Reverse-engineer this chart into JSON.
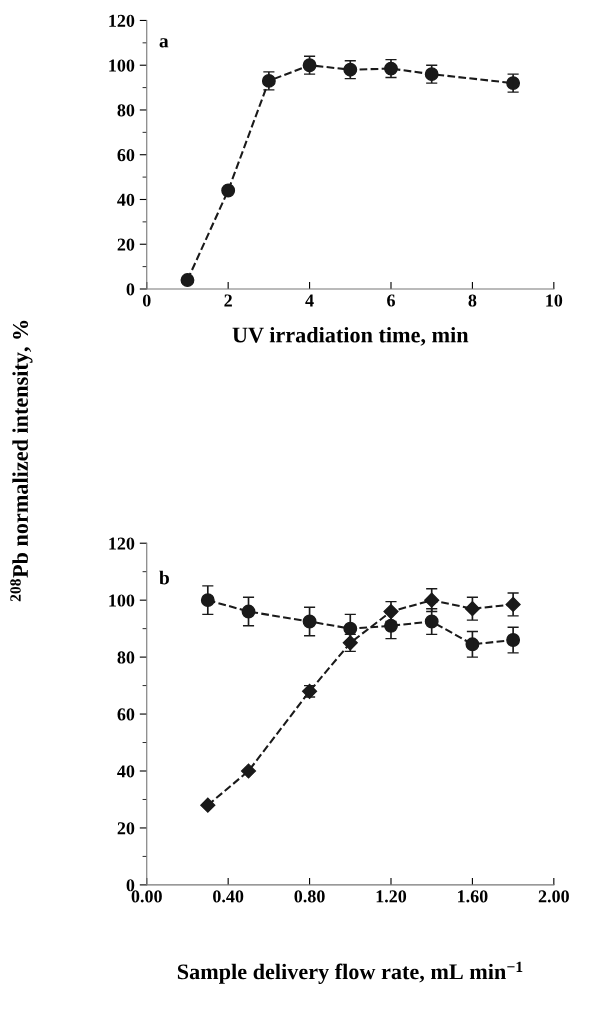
{
  "chart_data": [
    {
      "type": "line",
      "annotations": [
        "a"
      ],
      "xlabel": "UV irradiation time, min",
      "ylabel": "$^{208}$Pb normalized intensity, %",
      "x": [
        1,
        2,
        3,
        4,
        5,
        6,
        7,
        9
      ],
      "xlim": [
        0,
        10
      ],
      "xticks": [
        0,
        2,
        4,
        6,
        8,
        10
      ],
      "ylim": [
        0,
        120
      ],
      "yticks": [
        0,
        20,
        40,
        60,
        80,
        100,
        120
      ],
      "marker": "circle",
      "line_style": "dashed",
      "series": [
        {
          "color": "#1a1a1a",
          "values": [
            4,
            44,
            93,
            100,
            98,
            98.5,
            96,
            92
          ],
          "errors": [
            null,
            null,
            4,
            4,
            4,
            4,
            4,
            4
          ]
        }
      ]
    },
    {
      "type": "line",
      "annotations": [
        "b"
      ],
      "xlabel": "Sample delivery flow rate, mL min$^{−1}$",
      "x": [
        0.3,
        0.5,
        0.8,
        1.0,
        1.2,
        1.4,
        1.6,
        1.8
      ],
      "xlim": [
        0,
        2
      ],
      "xticks": [
        {
          "value": 0,
          "label": "0.00"
        },
        {
          "value": 0.4,
          "label": "0.40"
        },
        {
          "value": 0.8,
          "label": "0.80"
        },
        {
          "value": 1.2,
          "label": "1.20"
        },
        {
          "value": 1.6,
          "label": "1.60"
        },
        {
          "value": 2,
          "label": "2.00"
        }
      ],
      "ylim": [
        0,
        120
      ],
      "yticks": [
        0,
        20,
        40,
        60,
        80,
        100,
        120
      ],
      "line_style": "dashed",
      "series": [
        {
          "color": "#1a1a1a",
          "marker": "circle",
          "values": [
            100,
            96,
            92.5,
            90,
            91,
            92.5,
            84.5,
            86
          ],
          "errors": [
            5,
            5,
            5,
            5,
            4.5,
            4.5,
            4.5,
            4.5
          ]
        },
        {
          "color": "#1a1a1a",
          "marker": "diamond",
          "values": [
            28,
            40,
            68,
            85,
            96,
            100,
            97,
            98.5
          ],
          "errors": [
            null,
            null,
            2,
            3,
            3.5,
            4,
            4,
            4
          ]
        }
      ]
    }
  ]
}
